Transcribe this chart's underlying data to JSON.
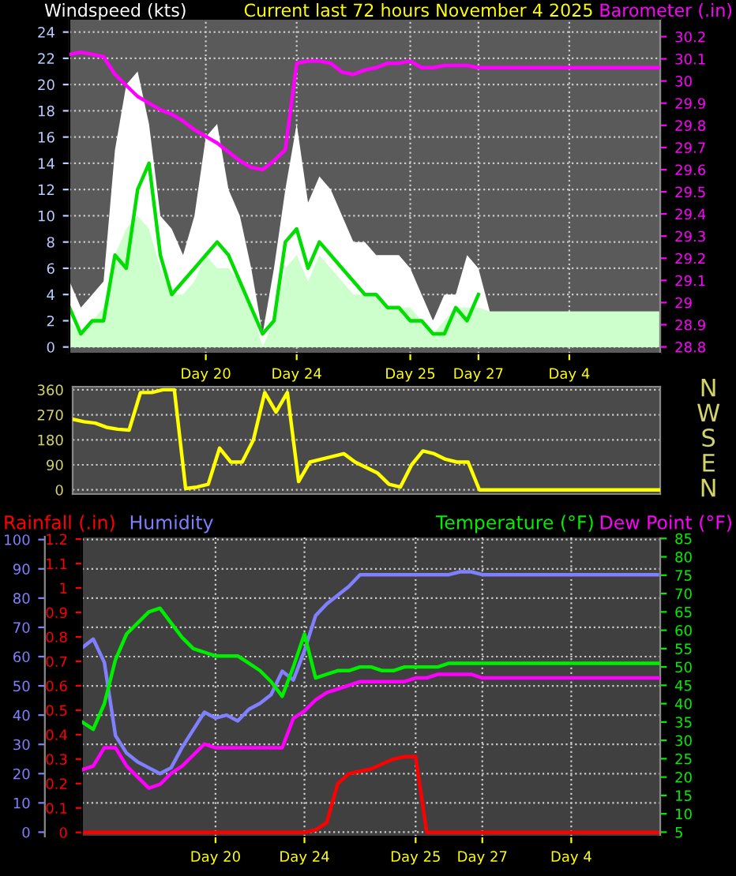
{
  "chart_data": [
    {
      "type": "area",
      "title": "Current last 72 hours November 4 2025",
      "ylabel": "Windspeed (kts)",
      "y2label": "Barometer (.in)",
      "categories": [
        null,
        null,
        null,
        null,
        null,
        null,
        null,
        null,
        null,
        null,
        null,
        null,
        "Day 20",
        null,
        null,
        null,
        null,
        null,
        null,
        null,
        "Day 24",
        null,
        null,
        null,
        null,
        null,
        null,
        null,
        null,
        null,
        "Day 25",
        null,
        null,
        null,
        null,
        null,
        "Day 27",
        null,
        null,
        null,
        null,
        null,
        null,
        null,
        "Day 4",
        null,
        null,
        null,
        null,
        null,
        null,
        null,
        null
      ],
      "ylim": [
        -0.5,
        25
      ],
      "yticks": [
        0,
        2,
        4,
        6,
        8,
        10,
        12,
        14,
        16,
        18,
        20,
        22,
        24
      ],
      "y2lim": [
        28.77,
        30.28
      ],
      "y2ticks": [
        28.8,
        28.9,
        29,
        29.1,
        29.2,
        29.3,
        29.4,
        29.5,
        29.6,
        29.7,
        29.8,
        29.9,
        30,
        30.1,
        30.2
      ],
      "grid": true,
      "series": [
        {
          "type": "area",
          "color": "#ffffff",
          "values": [
            5,
            3,
            4,
            5,
            15,
            20,
            21,
            17,
            10,
            9,
            7,
            10,
            16,
            17,
            12,
            10,
            6,
            1,
            6,
            12,
            17,
            11,
            13,
            12,
            10,
            8,
            8,
            7,
            7,
            7,
            6,
            4,
            2,
            4,
            4,
            7,
            6,
            2.7,
            2.7,
            2.7,
            2.7,
            2.7,
            2.7,
            2.7,
            2.7,
            2.7,
            2.7,
            2.7,
            2.7,
            2.7,
            2.7,
            2.7,
            2.7
          ]
        },
        {
          "type": "area",
          "color": "#ccffcc",
          "values": [
            2,
            1,
            2,
            3,
            7,
            9,
            10,
            9,
            6,
            4,
            4,
            5,
            7,
            6,
            6,
            5,
            3,
            0,
            2,
            6,
            7,
            5,
            7,
            6,
            5,
            4,
            4,
            4,
            3,
            3,
            3,
            2,
            1,
            2,
            3,
            3,
            3,
            2.7,
            2.7,
            2.7,
            2.7,
            2.7,
            2.7,
            2.7,
            2.7,
            2.7,
            2.7,
            2.7,
            2.7,
            2.7,
            2.7,
            2.7,
            2.7
          ]
        },
        {
          "type": "line",
          "color": "#00dd00",
          "values": [
            3,
            1,
            2,
            2,
            7,
            6,
            12,
            14,
            7,
            4,
            5,
            6,
            7,
            8,
            7,
            5,
            3,
            1,
            2,
            8,
            9,
            6,
            8,
            7,
            6,
            5,
            4,
            4,
            3,
            3,
            2,
            2,
            1,
            1,
            3,
            2,
            4,
            null,
            null,
            null,
            null,
            null,
            null,
            null,
            null,
            null,
            null,
            null,
            null,
            null,
            null,
            null,
            null
          ]
        },
        {
          "type": "line",
          "axis": "y2",
          "color": "#ff00ff",
          "values": [
            30.12,
            30.13,
            30.12,
            30.11,
            30.03,
            29.98,
            29.93,
            29.9,
            29.87,
            29.85,
            29.82,
            29.78,
            29.75,
            29.72,
            29.68,
            29.64,
            29.61,
            29.6,
            29.64,
            29.69,
            30.08,
            30.09,
            30.09,
            30.08,
            30.04,
            30.03,
            30.05,
            30.06,
            30.08,
            30.08,
            30.09,
            30.06,
            30.06,
            30.07,
            30.07,
            30.07,
            30.06,
            30.06,
            30.06,
            30.06,
            30.06,
            30.06,
            30.06,
            30.06,
            30.06,
            30.06,
            30.06,
            30.06,
            30.06,
            30.06,
            30.06,
            30.06,
            30.06
          ]
        }
      ]
    },
    {
      "type": "line",
      "categories": [
        null,
        null,
        null,
        null,
        null,
        null,
        null,
        null,
        null,
        null,
        null,
        null,
        null,
        null,
        null,
        null,
        null,
        null,
        null,
        null,
        null,
        null,
        null,
        null,
        null,
        null,
        null,
        null,
        null,
        null,
        null,
        null,
        null,
        null,
        null,
        null,
        null,
        null,
        null,
        null,
        null,
        null,
        null,
        null,
        null,
        null,
        null,
        null,
        null,
        null,
        null,
        null,
        null
      ],
      "ylim": [
        -15,
        371
      ],
      "yticks": [
        0,
        90,
        180,
        270,
        360
      ],
      "grid": true,
      "annotations": [
        "N",
        "W",
        "S",
        "E",
        "N"
      ],
      "series": [
        {
          "type": "line",
          "color": "#ffff00",
          "values": [
            254,
            245,
            240,
            225,
            218,
            215,
            350,
            350,
            360,
            360,
            5,
            10,
            20,
            150,
            100,
            100,
            180,
            350,
            280,
            350,
            30,
            100,
            110,
            120,
            130,
            100,
            80,
            60,
            20,
            10,
            90,
            140,
            130,
            110,
            100,
            100,
            0,
            0,
            0,
            0,
            0,
            0,
            0,
            0,
            0,
            0,
            0,
            0,
            0,
            0,
            0,
            0,
            0
          ]
        }
      ]
    },
    {
      "type": "line",
      "legend": "top",
      "categories": [
        null,
        null,
        null,
        null,
        null,
        null,
        null,
        null,
        null,
        null,
        null,
        null,
        "Day 20",
        null,
        null,
        null,
        null,
        null,
        null,
        null,
        "Day 24",
        null,
        null,
        null,
        null,
        null,
        null,
        null,
        null,
        null,
        "Day 25",
        null,
        null,
        null,
        null,
        null,
        "Day 27",
        null,
        null,
        null,
        null,
        null,
        null,
        null,
        "Day 4",
        null,
        null,
        null,
        null,
        null,
        null,
        null,
        null
      ],
      "ylim": [
        -1.5,
        101
      ],
      "yticks": [
        0,
        10,
        20,
        30,
        40,
        50,
        60,
        70,
        80,
        90,
        100
      ],
      "y2lim": [
        -0.017,
        1.21
      ],
      "y2ticks": [
        0,
        0.1,
        0.2,
        0.3,
        0.4,
        0.5,
        0.6,
        0.7,
        0.8,
        0.9,
        1,
        1.1,
        1.2
      ],
      "y3lim": [
        3.8,
        85.5
      ],
      "y3ticks": [
        5,
        10,
        15,
        20,
        25,
        30,
        35,
        40,
        45,
        50,
        55,
        60,
        65,
        70,
        75,
        80,
        85
      ],
      "grid": true,
      "series": [
        {
          "name": "Rainfall (.in)",
          "axis": "y2",
          "color": "#ff0000",
          "values": [
            0,
            0,
            0,
            0,
            0,
            0,
            0,
            0,
            0,
            0,
            0,
            0,
            0,
            0,
            0,
            0,
            0,
            0,
            0,
            0,
            0,
            0.01,
            0.04,
            0.2,
            0.24,
            0.25,
            0.26,
            0.28,
            0.3,
            0.31,
            0.31,
            0,
            0,
            0,
            0,
            0,
            0,
            0,
            0,
            0,
            0,
            0,
            0,
            0,
            0,
            0,
            0,
            0,
            0,
            0,
            0,
            0,
            0
          ]
        },
        {
          "name": "Humidity",
          "axis": "y",
          "color": "#8080ff",
          "values": [
            63,
            66,
            58,
            33,
            27,
            24,
            22,
            20,
            22,
            29,
            35,
            41,
            39,
            40,
            38,
            42,
            44,
            47,
            55,
            52,
            62,
            74,
            78,
            81,
            84,
            88,
            88,
            88,
            88,
            88,
            88,
            88,
            88,
            88,
            89,
            89,
            88,
            88,
            88,
            88,
            88,
            88,
            88,
            88,
            88,
            88,
            88,
            88,
            88,
            88,
            88,
            88,
            88
          ]
        },
        {
          "name": "Temperature (°F)",
          "axis": "y3",
          "color": "#00ee00",
          "values": [
            35,
            33,
            40,
            52,
            59,
            62,
            65,
            66,
            62,
            58,
            55,
            54,
            53,
            53,
            53,
            51,
            49,
            46,
            42,
            50,
            59,
            47,
            48,
            49,
            49,
            50,
            50,
            49,
            49,
            50,
            50,
            50,
            50,
            51,
            51,
            51,
            51,
            51,
            51,
            51,
            51,
            51,
            51,
            51,
            51,
            51,
            51,
            51,
            51,
            51,
            51,
            51,
            51
          ]
        },
        {
          "name": "Dew Point (°F)",
          "axis": "y3",
          "color": "#ff00ff",
          "values": [
            22,
            23,
            28,
            28,
            23,
            20,
            17,
            18,
            21,
            23,
            26,
            29,
            28,
            28,
            28,
            28,
            28,
            28,
            28,
            36,
            38,
            41,
            43,
            44,
            45,
            46,
            46,
            46,
            46,
            46,
            47,
            47,
            48,
            48,
            48,
            48,
            47,
            47,
            47,
            47,
            47,
            47,
            47,
            47,
            47,
            47,
            47,
            47,
            47,
            47,
            47,
            47,
            47
          ]
        }
      ]
    }
  ]
}
